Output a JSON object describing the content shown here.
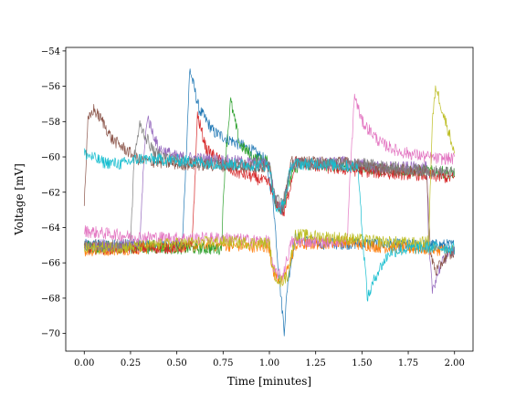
{
  "chart_data": {
    "type": "line",
    "title": "",
    "xlabel": "Time [minutes]",
    "ylabel": "Voltage [mV]",
    "xlim": [
      -0.1,
      2.1
    ],
    "ylim": [
      -71,
      -53.8
    ],
    "x_ticks": [
      0.0,
      0.25,
      0.5,
      0.75,
      1.0,
      1.25,
      1.5,
      1.75,
      2.0
    ],
    "x_tick_labels": [
      "0.00",
      "0.25",
      "0.50",
      "0.75",
      "1.00",
      "1.25",
      "1.50",
      "1.75",
      "2.00"
    ],
    "y_ticks": [
      -70,
      -68,
      -66,
      -64,
      -62,
      -60,
      -58,
      -56,
      -54
    ],
    "y_tick_labels": [
      "−70",
      "−68",
      "−66",
      "−64",
      "−62",
      "−60",
      "−58",
      "−56",
      "−54"
    ],
    "grid": false,
    "legend": "none",
    "series": [
      {
        "color": "#1f77b4",
        "noise": 0.35,
        "points": [
          [
            0.0,
            -65.0
          ],
          [
            0.53,
            -65.0
          ],
          [
            0.55,
            -60.0
          ],
          [
            0.57,
            -55.0
          ],
          [
            0.62,
            -57.3
          ],
          [
            0.7,
            -58.6
          ],
          [
            0.8,
            -59.1
          ],
          [
            0.9,
            -59.6
          ],
          [
            0.98,
            -60.2
          ],
          [
            1.02,
            -62.4
          ],
          [
            1.05,
            -66.5
          ],
          [
            1.08,
            -69.8
          ],
          [
            1.1,
            -67.0
          ],
          [
            1.14,
            -64.6
          ],
          [
            1.25,
            -64.9
          ],
          [
            1.5,
            -64.9
          ],
          [
            1.75,
            -65.0
          ],
          [
            2.0,
            -65.0
          ]
        ]
      },
      {
        "color": "#ff7f0e",
        "noise": 0.35,
        "points": [
          [
            0.0,
            -65.3
          ],
          [
            0.25,
            -65.2
          ],
          [
            0.5,
            -65.1
          ],
          [
            0.75,
            -65.0
          ],
          [
            1.0,
            -65.1
          ],
          [
            1.02,
            -66.6
          ],
          [
            1.07,
            -67.1
          ],
          [
            1.1,
            -66.3
          ],
          [
            1.14,
            -65.0
          ],
          [
            1.4,
            -64.8
          ],
          [
            1.6,
            -65.1
          ],
          [
            1.8,
            -65.2
          ],
          [
            2.0,
            -65.3
          ]
        ]
      },
      {
        "color": "#2ca02c",
        "noise": 0.35,
        "points": [
          [
            0.0,
            -65.1
          ],
          [
            0.74,
            -65.2
          ],
          [
            0.76,
            -60.5
          ],
          [
            0.79,
            -56.8
          ],
          [
            0.84,
            -59.3
          ],
          [
            0.92,
            -60.1
          ],
          [
            1.0,
            -60.3
          ],
          [
            1.03,
            -62.6
          ],
          [
            1.07,
            -63.0
          ],
          [
            1.12,
            -61.0
          ],
          [
            1.16,
            -60.4
          ],
          [
            1.4,
            -60.5
          ],
          [
            1.6,
            -60.7
          ],
          [
            1.8,
            -60.8
          ],
          [
            2.0,
            -60.9
          ]
        ]
      },
      {
        "color": "#d62728",
        "noise": 0.35,
        "points": [
          [
            0.0,
            -65.2
          ],
          [
            0.58,
            -65.1
          ],
          [
            0.6,
            -61.0
          ],
          [
            0.61,
            -57.6
          ],
          [
            0.66,
            -59.6
          ],
          [
            0.72,
            -60.1
          ],
          [
            0.8,
            -60.8
          ],
          [
            0.9,
            -61.1
          ],
          [
            1.0,
            -61.5
          ],
          [
            1.03,
            -62.5
          ],
          [
            1.08,
            -63.2
          ],
          [
            1.14,
            -60.3
          ],
          [
            1.3,
            -60.6
          ],
          [
            1.6,
            -60.9
          ],
          [
            1.8,
            -61.0
          ],
          [
            2.0,
            -61.2
          ]
        ]
      },
      {
        "color": "#9467bd",
        "noise": 0.35,
        "points": [
          [
            0.0,
            -65.0
          ],
          [
            0.3,
            -65.0
          ],
          [
            0.32,
            -60.4
          ],
          [
            0.34,
            -57.7
          ],
          [
            0.4,
            -59.5
          ],
          [
            0.5,
            -60.0
          ],
          [
            0.75,
            -60.2
          ],
          [
            1.0,
            -60.4
          ],
          [
            1.03,
            -62.4
          ],
          [
            1.07,
            -63.0
          ],
          [
            1.12,
            -60.4
          ],
          [
            1.4,
            -60.3
          ],
          [
            1.6,
            -60.6
          ],
          [
            1.85,
            -60.6
          ],
          [
            1.86,
            -65.0
          ],
          [
            1.88,
            -67.5
          ],
          [
            1.92,
            -66.3
          ],
          [
            1.96,
            -65.5
          ],
          [
            2.0,
            -65.2
          ]
        ]
      },
      {
        "color": "#8c564b",
        "noise": 0.35,
        "points": [
          [
            0.0,
            -62.6
          ],
          [
            0.02,
            -58.0
          ],
          [
            0.05,
            -57.3
          ],
          [
            0.1,
            -58.0
          ],
          [
            0.15,
            -59.0
          ],
          [
            0.2,
            -59.4
          ],
          [
            0.3,
            -60.2
          ],
          [
            0.5,
            -60.4
          ],
          [
            0.75,
            -60.5
          ],
          [
            1.0,
            -60.6
          ],
          [
            1.03,
            -62.5
          ],
          [
            1.07,
            -63.0
          ],
          [
            1.12,
            -60.3
          ],
          [
            1.4,
            -60.3
          ],
          [
            1.6,
            -60.7
          ],
          [
            1.85,
            -60.8
          ],
          [
            1.87,
            -65.5
          ],
          [
            1.9,
            -66.5
          ],
          [
            1.95,
            -65.7
          ],
          [
            2.0,
            -65.4
          ]
        ]
      },
      {
        "color": "#e377c2",
        "noise": 0.35,
        "points": [
          [
            0.0,
            -64.2
          ],
          [
            0.25,
            -64.5
          ],
          [
            0.5,
            -64.6
          ],
          [
            0.75,
            -64.6
          ],
          [
            1.0,
            -64.8
          ],
          [
            1.02,
            -66.4
          ],
          [
            1.07,
            -66.8
          ],
          [
            1.12,
            -64.8
          ],
          [
            1.42,
            -64.8
          ],
          [
            1.44,
            -60.2
          ],
          [
            1.46,
            -56.5
          ],
          [
            1.5,
            -58.0
          ],
          [
            1.6,
            -59.2
          ],
          [
            1.7,
            -59.7
          ],
          [
            1.8,
            -59.9
          ],
          [
            1.9,
            -60.1
          ],
          [
            2.0,
            -60.1
          ]
        ]
      },
      {
        "color": "#7f7f7f",
        "noise": 0.35,
        "points": [
          [
            0.0,
            -65.0
          ],
          [
            0.25,
            -65.0
          ],
          [
            0.27,
            -60.0
          ],
          [
            0.3,
            -58.2
          ],
          [
            0.38,
            -59.8
          ],
          [
            0.5,
            -60.2
          ],
          [
            0.75,
            -60.4
          ],
          [
            1.0,
            -60.5
          ],
          [
            1.03,
            -62.3
          ],
          [
            1.07,
            -62.7
          ],
          [
            1.12,
            -60.4
          ],
          [
            1.5,
            -60.4
          ],
          [
            1.75,
            -60.7
          ],
          [
            2.0,
            -60.9
          ]
        ]
      },
      {
        "color": "#bcbd22",
        "noise": 0.35,
        "points": [
          [
            0.0,
            -65.2
          ],
          [
            0.25,
            -65.1
          ],
          [
            0.5,
            -64.9
          ],
          [
            0.75,
            -64.8
          ],
          [
            1.0,
            -64.9
          ],
          [
            1.02,
            -66.5
          ],
          [
            1.06,
            -67.1
          ],
          [
            1.1,
            -66.7
          ],
          [
            1.14,
            -64.4
          ],
          [
            1.4,
            -64.6
          ],
          [
            1.6,
            -64.8
          ],
          [
            1.8,
            -64.9
          ],
          [
            1.86,
            -64.8
          ],
          [
            1.88,
            -58.0
          ],
          [
            1.9,
            -56.0
          ],
          [
            1.94,
            -57.6
          ],
          [
            1.97,
            -58.6
          ],
          [
            2.0,
            -59.8
          ]
        ]
      },
      {
        "color": "#17becf",
        "noise": 0.35,
        "points": [
          [
            0.0,
            -59.8
          ],
          [
            0.1,
            -60.3
          ],
          [
            0.2,
            -60.4
          ],
          [
            0.3,
            -60.1
          ],
          [
            0.5,
            -60.2
          ],
          [
            0.75,
            -60.4
          ],
          [
            1.0,
            -60.5
          ],
          [
            1.02,
            -62.0
          ],
          [
            1.04,
            -63.2
          ],
          [
            1.08,
            -62.6
          ],
          [
            1.12,
            -60.4
          ],
          [
            1.3,
            -60.4
          ],
          [
            1.48,
            -60.6
          ],
          [
            1.5,
            -64.0
          ],
          [
            1.53,
            -68.0
          ],
          [
            1.58,
            -66.6
          ],
          [
            1.65,
            -65.4
          ],
          [
            1.75,
            -65.2
          ],
          [
            1.9,
            -65.1
          ],
          [
            2.0,
            -65.2
          ]
        ]
      }
    ]
  }
}
